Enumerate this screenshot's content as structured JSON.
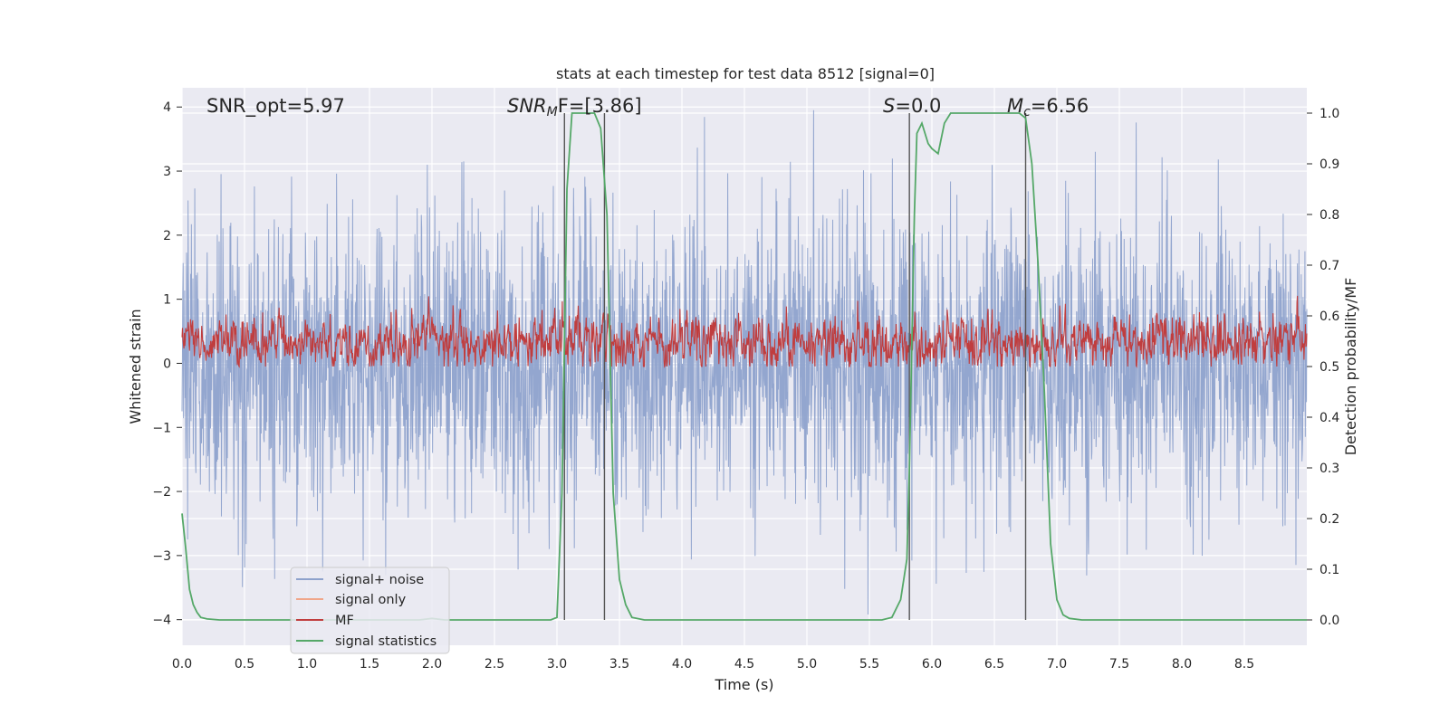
{
  "chart_data": {
    "type": "line",
    "title": "stats at each timestep for test data 8512 [signal=0]",
    "xlabel": "Time (s)",
    "ylabel": "Whitened strain",
    "y2label": "Detection probability/MF",
    "xlim": [
      0,
      9
    ],
    "ylim": [
      -4.4,
      4.3
    ],
    "y2lim": [
      -0.05,
      1.05
    ],
    "xticks": [
      "0.0",
      "0.5",
      "1.0",
      "1.5",
      "2.0",
      "2.5",
      "3.0",
      "3.5",
      "4.0",
      "4.5",
      "5.0",
      "5.5",
      "6.0",
      "6.5",
      "7.0",
      "7.5",
      "8.0",
      "8.5"
    ],
    "yticks": [
      "−4",
      "−3",
      "−2",
      "−1",
      "0",
      "1",
      "2",
      "3",
      "4"
    ],
    "y2ticks": [
      "0.0",
      "0.1",
      "0.2",
      "0.3",
      "0.4",
      "0.5",
      "0.6",
      "0.7",
      "0.8",
      "0.9",
      "1.0"
    ],
    "grid": true,
    "legend_position": "lower-left",
    "annotations": {
      "snr_opt": "SNR_opt=5.97",
      "snr_mf_var": "SNR",
      "snr_mf_sub": "M",
      "snr_mf_rest": "F=[3.86]",
      "s_var": "S",
      "s_rest": "=0.0",
      "mc_var": "M",
      "mc_sub": "c",
      "mc_rest": "=6.56"
    },
    "vertical_lines_x": [
      3.06,
      3.38,
      5.82,
      6.75
    ],
    "series": [
      {
        "name": "signal+ noise",
        "color": "#8ea2cc",
        "axis": "left",
        "values_note": ""
      },
      {
        "name": "signal only",
        "color": "#f0a68a",
        "axis": "left"
      },
      {
        "name": "MF",
        "color": "#c03d3e",
        "axis": "left"
      },
      {
        "name": "signal statistics",
        "color": "#55a868",
        "axis": "right",
        "x": [
          0.0,
          0.03,
          0.06,
          0.09,
          0.12,
          0.15,
          0.2,
          0.3,
          0.5,
          1.0,
          1.5,
          1.9,
          2.0,
          2.1,
          2.5,
          2.95,
          3.0,
          3.04,
          3.08,
          3.12,
          3.16,
          3.2,
          3.3,
          3.35,
          3.4,
          3.45,
          3.5,
          3.55,
          3.6,
          3.7,
          4.0,
          5.0,
          5.6,
          5.68,
          5.75,
          5.8,
          5.82,
          5.86,
          5.88,
          5.92,
          5.97,
          6.0,
          6.05,
          6.1,
          6.15,
          6.2,
          6.4,
          6.6,
          6.7,
          6.75,
          6.8,
          6.85,
          6.9,
          6.95,
          7.0,
          7.05,
          7.1,
          7.2,
          7.5,
          8.0,
          9.0
        ],
        "values": [
          0.21,
          0.14,
          0.06,
          0.03,
          0.015,
          0.005,
          0.002,
          0.0,
          0.0,
          0.0,
          0.0,
          0.0,
          0.003,
          0.0,
          0.0,
          0.0,
          0.005,
          0.25,
          0.85,
          1.0,
          1.0,
          1.0,
          1.0,
          0.97,
          0.8,
          0.25,
          0.08,
          0.03,
          0.005,
          0.0,
          0.0,
          0.0,
          0.0,
          0.005,
          0.04,
          0.12,
          0.3,
          0.8,
          0.96,
          0.98,
          0.94,
          0.93,
          0.92,
          0.98,
          1.0,
          1.0,
          1.0,
          1.0,
          1.0,
          0.99,
          0.9,
          0.7,
          0.45,
          0.15,
          0.04,
          0.01,
          0.003,
          0.0,
          0.0,
          0.0,
          0.0
        ]
      }
    ]
  }
}
